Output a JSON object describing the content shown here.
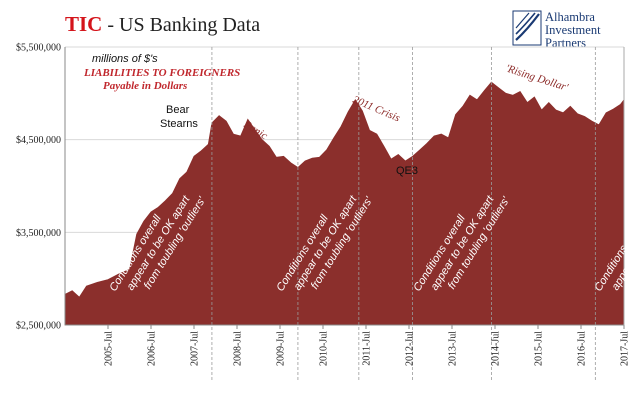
{
  "header": {
    "title_brand": "TIC",
    "title_rest": " - US Banking Data"
  },
  "logo": {
    "line1": "Alhambra",
    "line2": "Investment",
    "line3": "Partners"
  },
  "colors": {
    "area": "#8b2f2c",
    "brand_red": "#d4141b",
    "logo_blue": "#1a3a73"
  },
  "chart_data": {
    "type": "area",
    "title": "TIC - US Banking Data",
    "units_note": "millions of $'s",
    "series": [
      {
        "name": "LIABILITIES TO FOREIGNERS Payable in Dollars",
        "points": [
          [
            "2004-07",
            2830000
          ],
          [
            "2004-09",
            2870000
          ],
          [
            "2004-11",
            2800000
          ],
          [
            "2005-01",
            2920000
          ],
          [
            "2005-04",
            2960000
          ],
          [
            "2005-07",
            2990000
          ],
          [
            "2005-10",
            3050000
          ],
          [
            "2006-01",
            3100000
          ],
          [
            "2006-03",
            3480000
          ],
          [
            "2006-05",
            3620000
          ],
          [
            "2006-07",
            3720000
          ],
          [
            "2006-09",
            3770000
          ],
          [
            "2006-11",
            3840000
          ],
          [
            "2007-01",
            3920000
          ],
          [
            "2007-03",
            4080000
          ],
          [
            "2007-05",
            4150000
          ],
          [
            "2007-07",
            4320000
          ],
          [
            "2007-09",
            4380000
          ],
          [
            "2007-11",
            4450000
          ],
          [
            "2007-12",
            4680000
          ],
          [
            "2008-02",
            4760000
          ],
          [
            "2008-04",
            4700000
          ],
          [
            "2008-06",
            4560000
          ],
          [
            "2008-08",
            4540000
          ],
          [
            "2008-10",
            4720000
          ],
          [
            "2008-12",
            4610000
          ],
          [
            "2009-02",
            4500000
          ],
          [
            "2009-04",
            4430000
          ],
          [
            "2009-06",
            4310000
          ],
          [
            "2009-08",
            4320000
          ],
          [
            "2009-10",
            4250000
          ],
          [
            "2009-12",
            4200000
          ],
          [
            "2010-02",
            4270000
          ],
          [
            "2010-04",
            4300000
          ],
          [
            "2010-06",
            4310000
          ],
          [
            "2010-08",
            4390000
          ],
          [
            "2010-10",
            4520000
          ],
          [
            "2010-12",
            4640000
          ],
          [
            "2011-02",
            4800000
          ],
          [
            "2011-04",
            4930000
          ],
          [
            "2011-06",
            4810000
          ],
          [
            "2011-08",
            4600000
          ],
          [
            "2011-10",
            4560000
          ],
          [
            "2011-12",
            4430000
          ],
          [
            "2012-02",
            4290000
          ],
          [
            "2012-04",
            4340000
          ],
          [
            "2012-06",
            4270000
          ],
          [
            "2012-08",
            4320000
          ],
          [
            "2012-10",
            4390000
          ],
          [
            "2012-12",
            4460000
          ],
          [
            "2013-02",
            4540000
          ],
          [
            "2013-04",
            4560000
          ],
          [
            "2013-06",
            4520000
          ],
          [
            "2013-08",
            4770000
          ],
          [
            "2013-10",
            4860000
          ],
          [
            "2013-12",
            4980000
          ],
          [
            "2014-02",
            4930000
          ],
          [
            "2014-04",
            5030000
          ],
          [
            "2014-06",
            5120000
          ],
          [
            "2014-08",
            5060000
          ],
          [
            "2014-10",
            5000000
          ],
          [
            "2014-12",
            4980000
          ],
          [
            "2015-02",
            5020000
          ],
          [
            "2015-04",
            4900000
          ],
          [
            "2015-06",
            4960000
          ],
          [
            "2015-08",
            4820000
          ],
          [
            "2015-10",
            4900000
          ],
          [
            "2015-12",
            4820000
          ],
          [
            "2016-02",
            4790000
          ],
          [
            "2016-04",
            4860000
          ],
          [
            "2016-06",
            4780000
          ],
          [
            "2016-08",
            4750000
          ],
          [
            "2016-10",
            4700000
          ],
          [
            "2016-12",
            4660000
          ],
          [
            "2017-02",
            4790000
          ],
          [
            "2017-04",
            4830000
          ],
          [
            "2017-06",
            4880000
          ],
          [
            "2017-07",
            4930000
          ]
        ]
      }
    ],
    "x_ticks": [
      "2005-Jul",
      "2006-Jul",
      "2007-Jul",
      "2008-Jul",
      "2009-Jul",
      "2010-Jul",
      "2011-Jul",
      "2012-Jul",
      "2013-Jul",
      "2014-Jul",
      "2015-Jul",
      "2016-Jul",
      "2017-Jul"
    ],
    "x_range": [
      "2004-07",
      "2017-07"
    ],
    "y_ticks": [
      "$2,500,000",
      "$3,500,000",
      "$4,500,000",
      "$5,500,000"
    ],
    "y_range": [
      2500000,
      5500000
    ],
    "vertical_markers": [
      "2007-12",
      "2009-12",
      "2011-05",
      "2012-08",
      "2014-06",
      "2016-11"
    ],
    "annotations": {
      "legend_units": "millions of $'s",
      "legend_line1": "LIABILITIES TO FOREIGNERS",
      "legend_line2": "Payable in Dollars",
      "bear1": "Bear",
      "bear2": "Stearns",
      "panic": "Panic",
      "crisis": "2011 Crisis",
      "qe3": "QE3",
      "rising": "'Rising Dollar'",
      "cond1": "Conditions overall",
      "cond2": "appear to be OK apart",
      "cond3": "from toubling 'outliers'"
    }
  }
}
